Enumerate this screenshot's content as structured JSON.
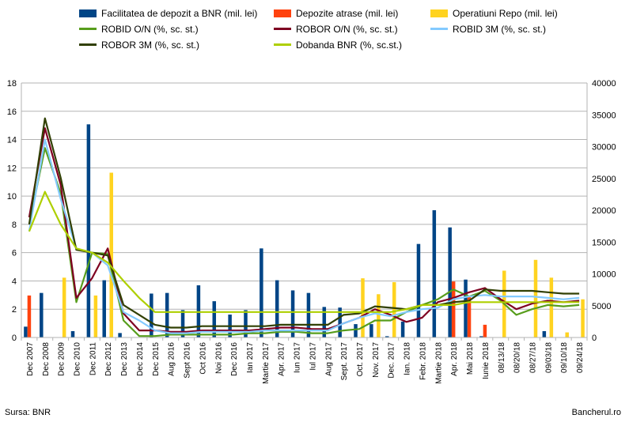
{
  "chart_data": {
    "type": "bar",
    "categories": [
      "Dec 2007",
      "Dec 2008",
      "Dec 2009",
      "Dec 2010",
      "Dec 2011",
      "Dec 2012",
      "Dec 2013",
      "Dec 2014",
      "Dec 2015",
      "Aug 2016",
      "Sept 2016",
      "Oct 2016",
      "Noi 2016",
      "Dec 2016",
      "Ian 2017",
      "Martie 2017",
      "Apr. 2017",
      "Iun 2017",
      "Iul 2017",
      "Aug 2017",
      "Sept. 2017",
      "Oct. 2017",
      "Nov. 2017",
      "Dec. 2017",
      "Ian. 2018",
      "Febr. 2018",
      "Martie 2018",
      "Apr. 2018",
      "Mai 2018",
      "Iunie 2018",
      "08/13/18",
      "08/20/18",
      "08/27/18",
      "09/03/18",
      "09/10/18",
      "09/24/18"
    ],
    "left_axis": {
      "ylim": [
        0,
        18
      ],
      "ticks": [
        0,
        2,
        4,
        6,
        8,
        10,
        12,
        14,
        16,
        18
      ]
    },
    "right_axis": {
      "ylim": [
        0,
        40000
      ],
      "ticks": [
        0,
        5000,
        10000,
        15000,
        20000,
        25000,
        30000,
        35000,
        40000
      ]
    },
    "bar_series": [
      {
        "name": "Facilitatea de depozit a BNR (mil. lei)",
        "color": "#004586",
        "values": [
          1700,
          7000,
          0,
          1000,
          33500,
          9000,
          700,
          0,
          6900,
          7000,
          4300,
          8200,
          5700,
          3600,
          4300,
          14000,
          9000,
          7400,
          7000,
          4800,
          4700,
          2100,
          2100,
          200,
          2500,
          14700,
          20000,
          17300,
          9100,
          200,
          0,
          0,
          0,
          1000,
          0,
          0
        ]
      },
      {
        "name": "Depozite atrase (mil. lei)",
        "color": "#ff420e",
        "values": [
          6600,
          0,
          0,
          0,
          0,
          0,
          0,
          0,
          0,
          0,
          0,
          0,
          0,
          0,
          0,
          0,
          0,
          0,
          0,
          0,
          0,
          0,
          0,
          0,
          0,
          0,
          0,
          8800,
          6400,
          2000,
          0,
          0,
          0,
          0,
          0,
          0
        ]
      },
      {
        "name": "Operatiuni Repo (mil. lei)",
        "color": "#ffd320",
        "values": [
          0,
          0,
          9400,
          0,
          6600,
          25900,
          0,
          0,
          0,
          0,
          0,
          0,
          0,
          0,
          0,
          0,
          0,
          0,
          0,
          0,
          0,
          9300,
          6800,
          8700,
          0,
          0,
          0,
          0,
          0,
          0,
          10500,
          0,
          12200,
          9400,
          800,
          6000
        ]
      }
    ],
    "line_series": [
      {
        "name": "ROBID O/N (%, sc. st.)",
        "color": "#579d1c",
        "values": [
          8.0,
          13.4,
          10.2,
          2.5,
          6.0,
          5.9,
          1.2,
          0.1,
          0.1,
          0.2,
          0.2,
          0.2,
          0.2,
          0.2,
          0.3,
          0.3,
          0.4,
          0.4,
          0.3,
          0.3,
          0.5,
          0.6,
          1.2,
          1.2,
          1.8,
          2.3,
          2.7,
          3.4,
          2.9,
          3.3,
          2.6,
          1.6,
          2.0,
          2.3,
          2.2,
          2.3
        ]
      },
      {
        "name": "ROBOR O/N (%, sc. st.)",
        "color": "#7e0021",
        "values": [
          8.5,
          14.8,
          10.8,
          2.8,
          4.2,
          6.3,
          1.7,
          0.5,
          0.5,
          0.4,
          0.4,
          0.5,
          0.5,
          0.5,
          0.5,
          0.6,
          0.7,
          0.7,
          0.6,
          0.6,
          1.0,
          1.4,
          2.0,
          1.6,
          1.1,
          1.4,
          2.5,
          2.8,
          3.2,
          3.5,
          2.7,
          2.0,
          2.4,
          2.6,
          2.5,
          2.6
        ]
      },
      {
        "name": "ROBID 3M (%, sc. st.)",
        "color": "#83caff",
        "values": [
          7.5,
          14.0,
          9.8,
          6.3,
          6.0,
          5.1,
          1.8,
          1.2,
          0.5,
          0.3,
          0.3,
          0.4,
          0.4,
          0.4,
          0.4,
          0.5,
          0.5,
          0.5,
          0.5,
          0.5,
          1.0,
          1.4,
          1.7,
          1.5,
          1.8,
          2.0,
          2.1,
          2.7,
          2.9,
          3.0,
          2.9,
          2.9,
          2.9,
          2.8,
          2.7,
          2.8
        ]
      },
      {
        "name": "ROBOR 3M (%, sc. st.)",
        "color": "#314004",
        "values": [
          8.0,
          15.5,
          11.3,
          6.2,
          6.0,
          5.8,
          2.3,
          1.6,
          0.9,
          0.7,
          0.7,
          0.8,
          0.8,
          0.8,
          0.8,
          0.8,
          0.9,
          0.9,
          0.9,
          0.9,
          1.6,
          1.7,
          2.2,
          2.1,
          2.0,
          2.3,
          2.3,
          2.5,
          2.6,
          3.4,
          3.3,
          3.3,
          3.3,
          3.2,
          3.1,
          3.1
        ]
      },
      {
        "name": "Dobanda BNR (%, sc.st.)",
        "color": "#aecf00",
        "values": [
          7.5,
          10.3,
          8.0,
          6.3,
          6.0,
          5.3,
          4.0,
          2.8,
          1.8,
          1.8,
          1.8,
          1.8,
          1.8,
          1.8,
          1.8,
          1.8,
          1.8,
          1.8,
          1.8,
          1.8,
          1.8,
          1.8,
          1.8,
          1.8,
          2.0,
          2.3,
          2.3,
          2.3,
          2.5,
          2.5,
          2.5,
          2.5,
          2.5,
          2.5,
          2.5,
          2.5
        ]
      }
    ]
  },
  "footer": {
    "source": "Sursa: BNR",
    "brand": "Bancherul.ro"
  }
}
